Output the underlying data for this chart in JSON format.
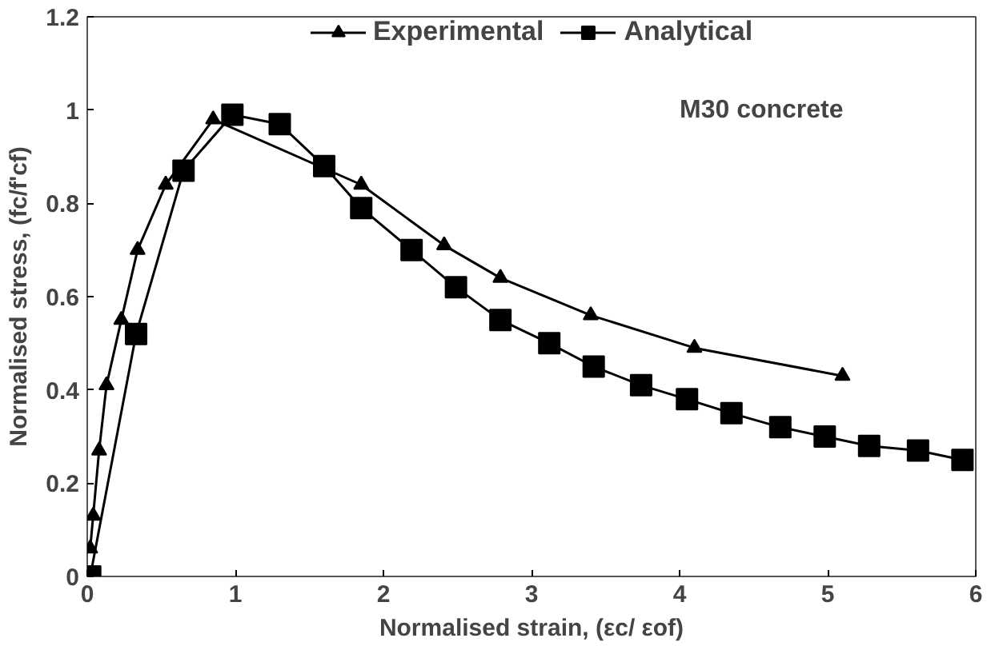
{
  "chart_data": {
    "type": "line",
    "xlabel": "Normalised strain, (εc/ εof)",
    "ylabel": "Normalised stress, (fc/f'cf)",
    "annotations": [
      "M30 concrete"
    ],
    "xlim": [
      0,
      6
    ],
    "ylim": [
      0,
      1.2
    ],
    "xticks": [
      0,
      1,
      2,
      3,
      4,
      5,
      6
    ],
    "yticks": [
      0,
      0.2,
      0.4,
      0.6,
      0.8,
      1,
      1.2
    ],
    "grid": false,
    "legend": "top",
    "series": [
      {
        "name": "Experimental",
        "color": "#000000",
        "marker": "triangle",
        "x": [
          0.02,
          0.04,
          0.08,
          0.13,
          0.23,
          0.34,
          0.53,
          0.85,
          1.85,
          2.41,
          2.79,
          3.4,
          4.1,
          5.1
        ],
        "values": [
          0.06,
          0.13,
          0.27,
          0.41,
          0.55,
          0.7,
          0.84,
          0.98,
          0.84,
          0.71,
          0.64,
          0.56,
          0.49,
          0.43
        ]
      },
      {
        "name": "Analytical",
        "color": "#000000",
        "marker": "square",
        "x": [
          0.02,
          0.33,
          0.65,
          0.98,
          1.3,
          1.6,
          1.85,
          2.19,
          2.49,
          2.79,
          3.12,
          3.42,
          3.74,
          4.05,
          4.35,
          4.68,
          4.98,
          5.28,
          5.61,
          5.91
        ],
        "values": [
          0,
          0.52,
          0.87,
          0.99,
          0.97,
          0.88,
          0.79,
          0.7,
          0.62,
          0.55,
          0.5,
          0.45,
          0.41,
          0.38,
          0.35,
          0.32,
          0.3,
          0.28,
          0.27,
          0.25
        ]
      }
    ]
  }
}
